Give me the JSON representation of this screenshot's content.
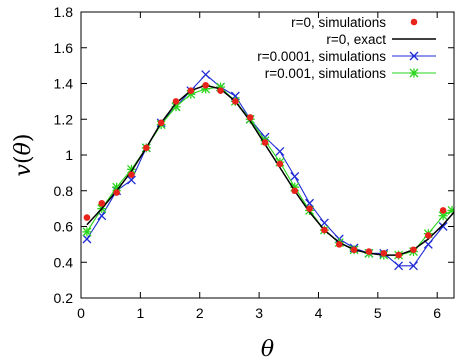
{
  "chart_data": {
    "type": "line",
    "xlabel": "θ",
    "ylabel": "v(θ)",
    "xlim": [
      0,
      6.283
    ],
    "ylim": [
      0.2,
      1.8
    ],
    "xticks": [
      0,
      1,
      2,
      3,
      4,
      5,
      6
    ],
    "yticks": [
      0.2,
      0.4,
      0.6,
      0.8,
      1,
      1.2,
      1.4,
      1.6,
      1.8
    ],
    "xtick_labels": [
      "0",
      "1",
      "2",
      "3",
      "4",
      "5",
      "6"
    ],
    "ytick_labels": [
      "0.2",
      "0.4",
      "0.6",
      "0.8",
      "1",
      "1.2",
      "1.4",
      "1.6",
      "1.8"
    ],
    "grid": false,
    "legend_position": "top-right",
    "series": [
      {
        "name": "r=0, simulations",
        "style": "points",
        "marker": "circle",
        "color": "#e8231b",
        "x": [
          0.1,
          0.35,
          0.6,
          0.85,
          1.1,
          1.35,
          1.6,
          1.85,
          2.1,
          2.35,
          2.6,
          2.85,
          3.1,
          3.35,
          3.6,
          3.85,
          4.1,
          4.35,
          4.6,
          4.85,
          5.1,
          5.35,
          5.6,
          5.85,
          6.1
        ],
        "y": [
          0.65,
          0.73,
          0.79,
          0.89,
          1.04,
          1.18,
          1.3,
          1.36,
          1.39,
          1.36,
          1.3,
          1.21,
          1.07,
          0.95,
          0.8,
          0.7,
          0.58,
          0.5,
          0.47,
          0.46,
          0.45,
          0.44,
          0.47,
          0.55,
          0.69
        ]
      },
      {
        "name": "r=0, exact",
        "style": "line",
        "color": "#000000",
        "x": [
          0.1,
          0.35,
          0.6,
          0.85,
          1.1,
          1.35,
          1.6,
          1.85,
          2.1,
          2.35,
          2.6,
          2.85,
          3.1,
          3.35,
          3.6,
          3.85,
          4.1,
          4.35,
          4.6,
          4.85,
          5.1,
          5.35,
          5.6,
          5.85,
          6.1,
          6.283
        ],
        "y": [
          0.61,
          0.7,
          0.8,
          0.91,
          1.04,
          1.18,
          1.29,
          1.36,
          1.39,
          1.37,
          1.3,
          1.19,
          1.06,
          0.93,
          0.8,
          0.68,
          0.58,
          0.51,
          0.47,
          0.45,
          0.44,
          0.44,
          0.47,
          0.53,
          0.61,
          0.68
        ]
      },
      {
        "name": "r=0.0001, simulations",
        "style": "line-points",
        "marker": "x",
        "color": "#1f2bd4",
        "x": [
          0.1,
          0.35,
          0.6,
          0.85,
          1.1,
          1.35,
          1.6,
          1.85,
          2.1,
          2.35,
          2.6,
          2.85,
          3.1,
          3.35,
          3.6,
          3.85,
          4.1,
          4.35,
          4.6,
          4.85,
          5.1,
          5.35,
          5.6,
          5.85,
          6.1
        ],
        "y": [
          0.53,
          0.66,
          0.8,
          0.86,
          1.04,
          1.18,
          1.27,
          1.36,
          1.45,
          1.38,
          1.33,
          1.2,
          1.1,
          1.02,
          0.88,
          0.73,
          0.62,
          0.53,
          0.48,
          0.45,
          0.45,
          0.38,
          0.38,
          0.5,
          0.6
        ]
      },
      {
        "name": "r=0.001, simulations",
        "style": "line-points",
        "marker": "star",
        "color": "#2ad61c",
        "x": [
          0.1,
          0.35,
          0.6,
          0.85,
          1.1,
          1.35,
          1.6,
          1.85,
          2.1,
          2.35,
          2.6,
          2.85,
          3.1,
          3.35,
          3.6,
          3.85,
          4.1,
          4.35,
          4.6,
          4.85,
          5.1,
          5.35,
          5.6,
          5.85,
          6.1,
          6.25
        ],
        "y": [
          0.57,
          0.7,
          0.82,
          0.92,
          1.04,
          1.17,
          1.27,
          1.34,
          1.37,
          1.38,
          1.3,
          1.2,
          1.08,
          0.96,
          0.82,
          0.69,
          0.58,
          0.51,
          0.47,
          0.45,
          0.44,
          0.44,
          0.46,
          0.56,
          0.66,
          0.69
        ]
      }
    ]
  }
}
